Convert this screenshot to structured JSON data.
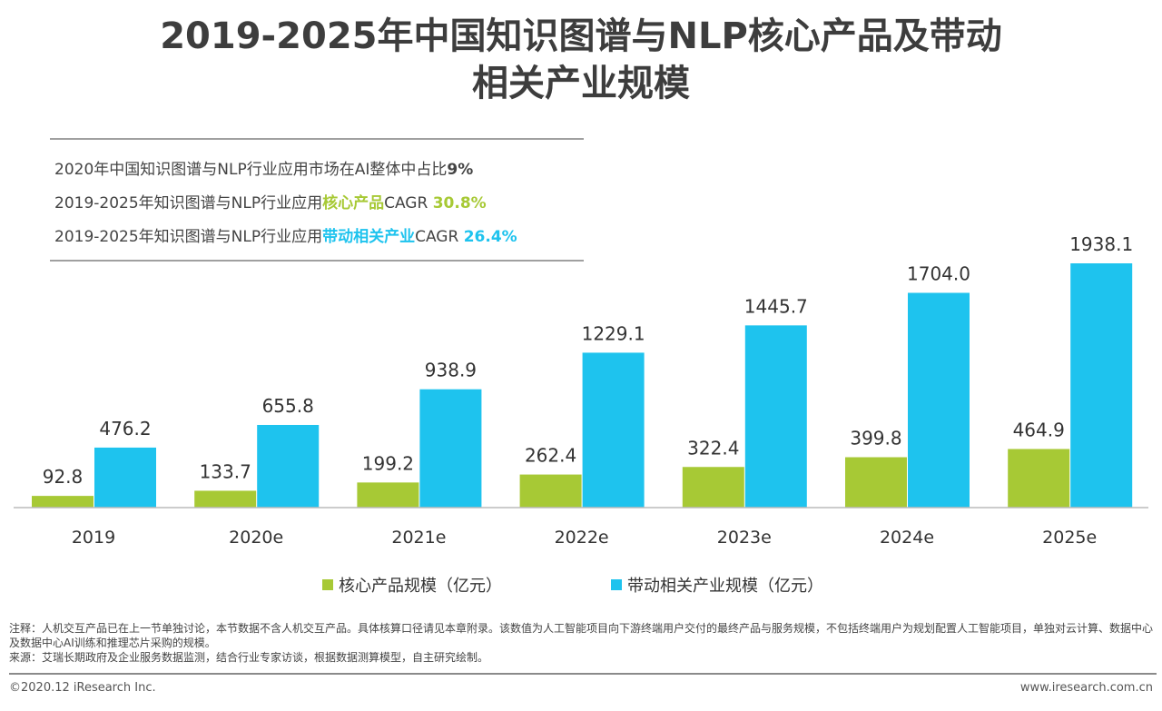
{
  "title_line1": "2019-2025年中国知识图谱与NLP核心产品及带动",
  "title_line2": "相关产业规模",
  "highlights": {
    "l1_text": "2020年中国知识图谱与NLP行业应用市场在AI整体中占比",
    "l1_value": "9%",
    "l2_text": "2019-2025年知识图谱与NLP行业应用",
    "l2_key": "核心产品",
    "l2_cagr": "CAGR ",
    "l2_value": "30.8%",
    "l3_text": "2019-2025年知识图谱与NLP行业应用",
    "l3_key": "带动相关产业",
    "l3_cagr": "CAGR ",
    "l3_value": "26.4%"
  },
  "chart_data": {
    "type": "bar",
    "categories": [
      "2019",
      "2020e",
      "2021e",
      "2022e",
      "2023e",
      "2024e",
      "2025e"
    ],
    "series": [
      {
        "name": "核心产品规模（亿元）",
        "values": [
          92.8,
          133.7,
          199.2,
          262.4,
          322.4,
          399.8,
          464.9
        ],
        "color": "#a7c935"
      },
      {
        "name": "带动相关产业规模（亿元）",
        "values": [
          476.2,
          655.8,
          938.9,
          1229.1,
          1445.7,
          1704.0,
          1938.1
        ],
        "color": "#1ec3ee"
      }
    ],
    "data_labels": true,
    "legend": "bottom",
    "grid": false
  },
  "notes": {
    "note": "注释：人机交互产品已在上一节单独讨论，本节数据不含人机交互产品。具体核算口径请见本章附录。该数值为人工智能项目向下游终端用户交付的最终产品与服务规模，不包括终端用户为规划配置人工智能项目，单独对云计算、数据中心及数据中心AI训练和推理芯片采购的规模。",
    "source": "来源：艾瑞长期政府及企业服务数据监测，结合行业专家访谈，根据数据测算模型，自主研究绘制。"
  },
  "footer": {
    "copyright": "©2020.12 iResearch Inc.",
    "website": "www.iresearch.com.cn"
  }
}
